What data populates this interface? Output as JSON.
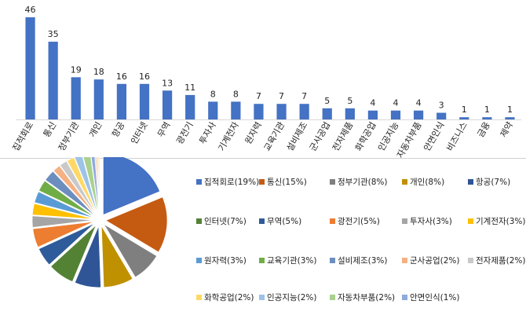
{
  "chart_data": [
    {
      "type": "bar",
      "categories": [
        "집적회로",
        "통신",
        "정부기관",
        "개인",
        "항공",
        "인터넷",
        "무역",
        "광전기",
        "투자사",
        "기계전자",
        "원자력",
        "교육기관",
        "설비제조",
        "군사공업",
        "전자제품",
        "화학공업",
        "인공지능",
        "자동차부품",
        "안면인식",
        "비즈니스",
        "금융",
        "제약"
      ],
      "values": [
        46,
        35,
        19,
        18,
        16,
        16,
        13,
        11,
        8,
        8,
        7,
        7,
        7,
        5,
        5,
        4,
        4,
        4,
        3,
        1,
        1,
        1
      ],
      "bar_color": "#4472C4",
      "grid": false,
      "legend": "none"
    },
    {
      "type": "pie",
      "slices": [
        {
          "label": "집적회로(19%)",
          "value": 19,
          "color": "#4472C4"
        },
        {
          "label": "통신(15%)",
          "value": 15,
          "color": "#C55A11"
        },
        {
          "label": "정부기관(8%)",
          "value": 8,
          "color": "#7F7F7F"
        },
        {
          "label": "개인(8%)",
          "value": 8,
          "color": "#BF9000"
        },
        {
          "label": "항공(7%)",
          "value": 7,
          "color": "#2F5597"
        },
        {
          "label": "인터넷(7%)",
          "value": 7,
          "color": "#548235"
        },
        {
          "label": "무역(5%)",
          "value": 5,
          "color": "#2E5C9A"
        },
        {
          "label": "광전기(5%)",
          "value": 5,
          "color": "#ED7D31"
        },
        {
          "label": "투자사(3%)",
          "value": 3,
          "color": "#A5A5A5"
        },
        {
          "label": "기계전자(3%)",
          "value": 3,
          "color": "#FFC000"
        },
        {
          "label": "원자력(3%)",
          "value": 3,
          "color": "#5B9BD5"
        },
        {
          "label": "교육기관(3%)",
          "value": 3,
          "color": "#70AD47"
        },
        {
          "label": "설비제조(3%)",
          "value": 3,
          "color": "#6C8EBF"
        },
        {
          "label": "군사공업(2%)",
          "value": 2,
          "color": "#F4B183"
        },
        {
          "label": "전자제품(2%)",
          "value": 2,
          "color": "#C9C9C9"
        },
        {
          "label": "화학공업(2%)",
          "value": 2,
          "color": "#FFD966"
        },
        {
          "label": "인공지능(2%)",
          "value": 2,
          "color": "#9DC3E6"
        },
        {
          "label": "자동차부품(2%)",
          "value": 2,
          "color": "#A9D18E"
        },
        {
          "label": "안면인식(1%)",
          "value": 1,
          "color": "#8FAADC"
        },
        {
          "label": "",
          "value": 0.4,
          "color": "#F8CBAD"
        },
        {
          "label": "",
          "value": 0.4,
          "color": "#DBDBDB"
        },
        {
          "label": "",
          "value": 0.4,
          "color": "#FFE699"
        }
      ],
      "legend": "right"
    }
  ]
}
